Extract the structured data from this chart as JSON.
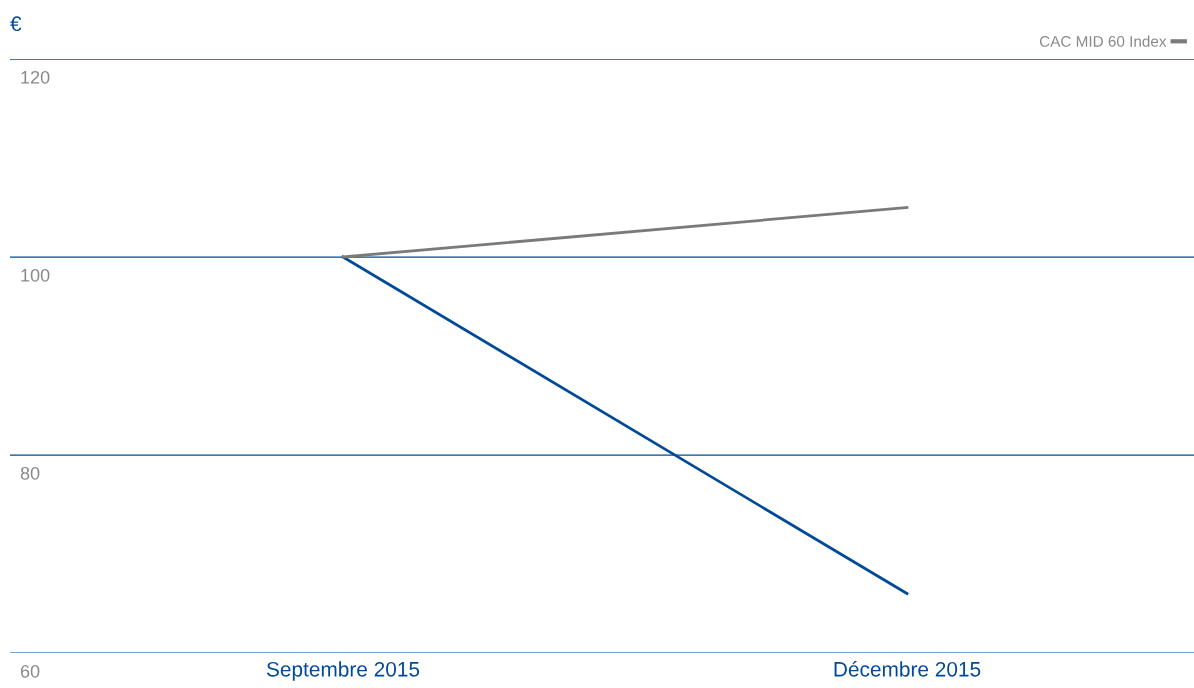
{
  "chart_data": {
    "type": "line",
    "ylabel": "€",
    "categories": [
      "Septembre 2015",
      "Décembre 2015"
    ],
    "series": [
      {
        "color": "#004a98",
        "values": [
          100,
          66
        ]
      },
      {
        "name": "CAC MID 60 Index",
        "color": "#7a7a7a",
        "values": [
          100,
          105
        ]
      }
    ],
    "ylim": [
      60,
      120
    ],
    "yticks": [
      60,
      80,
      100,
      120
    ],
    "grid": "y",
    "legend": "top right",
    "marker": "none",
    "line_style": "solid"
  }
}
